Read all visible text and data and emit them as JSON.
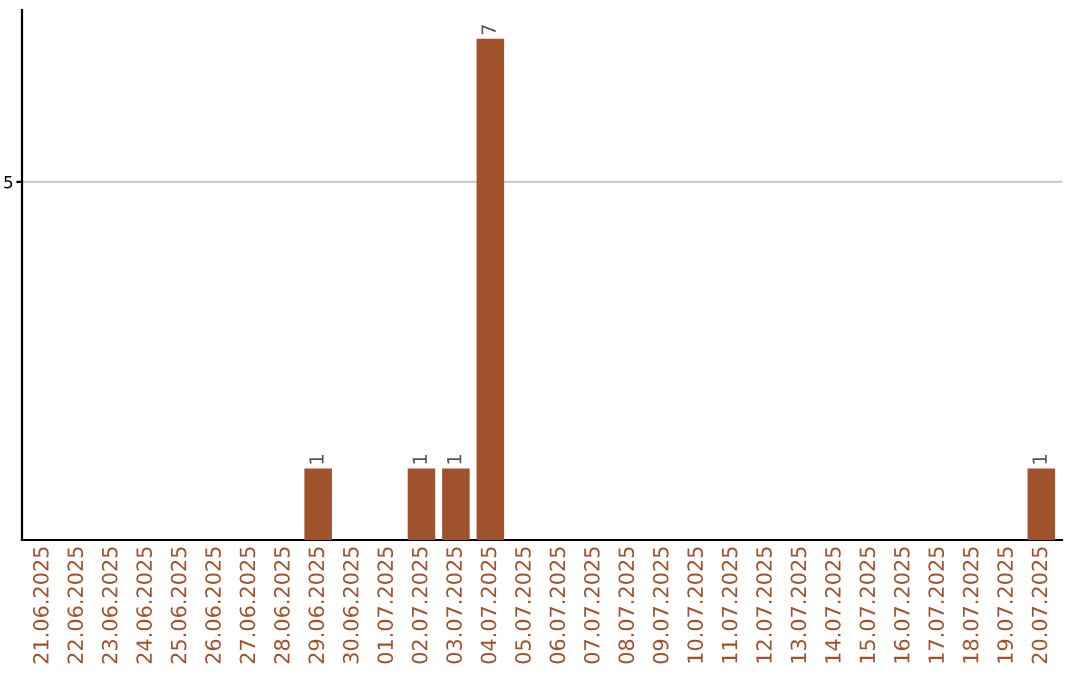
{
  "chart_data": {
    "type": "bar",
    "categories": [
      "21.06.2025",
      "22.06.2025",
      "23.06.2025",
      "24.06.2025",
      "25.06.2025",
      "26.06.2025",
      "27.06.2025",
      "28.06.2025",
      "29.06.2025",
      "30.06.2025",
      "01.07.2025",
      "02.07.2025",
      "03.07.2025",
      "04.07.2025",
      "05.07.2025",
      "06.07.2025",
      "07.07.2025",
      "08.07.2025",
      "09.07.2025",
      "10.07.2025",
      "11.07.2025",
      "12.07.2025",
      "13.07.2025",
      "14.07.2025",
      "15.07.2025",
      "16.07.2025",
      "17.07.2025",
      "18.07.2025",
      "19.07.2025",
      "20.07.2025"
    ],
    "values": [
      0,
      0,
      0,
      0,
      0,
      0,
      0,
      0,
      1,
      0,
      0,
      1,
      1,
      7,
      0,
      0,
      0,
      0,
      0,
      0,
      0,
      0,
      0,
      0,
      0,
      0,
      0,
      0,
      0,
      1
    ],
    "value_labels": [
      null,
      null,
      null,
      null,
      null,
      null,
      null,
      null,
      "1",
      null,
      null,
      "1",
      "1",
      "7",
      null,
      null,
      null,
      null,
      null,
      null,
      null,
      null,
      null,
      null,
      null,
      null,
      null,
      null,
      null,
      "1"
    ],
    "color": "#a0522d",
    "ylim": [
      0,
      7.4
    ],
    "yticks": [
      5
    ],
    "grid": "y"
  }
}
